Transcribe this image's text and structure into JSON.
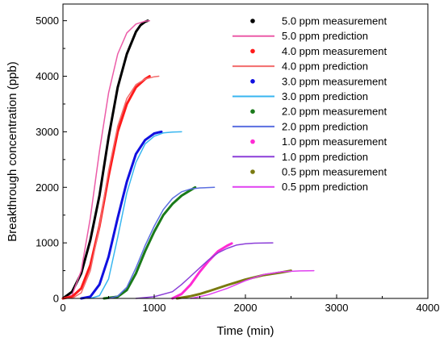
{
  "chart_data": {
    "type": "line",
    "xlabel": "Time (min)",
    "ylabel": "Breakthrough concentration (ppb)",
    "xlim": [
      0,
      4000
    ],
    "ylim": [
      0,
      5300
    ],
    "xticks": [
      0,
      1000,
      2000,
      3000,
      4000
    ],
    "yticks": [
      0,
      1000,
      2000,
      3000,
      4000,
      5000
    ],
    "grid": false,
    "legend_position": "top-right",
    "series": [
      {
        "name": "5.0 ppm measurement",
        "kind": "measurement",
        "color": "#000000",
        "x": [
          0,
          100,
          200,
          300,
          400,
          500,
          600,
          700,
          800,
          850,
          900,
          930
        ],
        "y": [
          0,
          120,
          450,
          1050,
          1850,
          2900,
          3800,
          4400,
          4800,
          4920,
          4980,
          5000
        ]
      },
      {
        "name": "5.0 ppm prediction",
        "kind": "prediction",
        "color": "#ec5ca8",
        "x": [
          0,
          100,
          200,
          300,
          400,
          500,
          600,
          700,
          800,
          900,
          950
        ],
        "y": [
          0,
          60,
          500,
          1450,
          2650,
          3700,
          4400,
          4780,
          4940,
          4990,
          5000
        ]
      },
      {
        "name": "4.0 ppm measurement",
        "kind": "measurement",
        "color": "#ff1a1a",
        "x": [
          0,
          100,
          200,
          300,
          400,
          500,
          600,
          700,
          800,
          900,
          950
        ],
        "y": [
          0,
          30,
          180,
          600,
          1300,
          2200,
          3000,
          3500,
          3800,
          3950,
          4000
        ]
      },
      {
        "name": "4.0 ppm prediction",
        "kind": "prediction",
        "color": "#f26b6b",
        "x": [
          100,
          200,
          300,
          400,
          500,
          600,
          700,
          800,
          900,
          1000,
          1050
        ],
        "y": [
          0,
          100,
          500,
          1300,
          2300,
          3100,
          3600,
          3850,
          3950,
          3990,
          4000
        ]
      },
      {
        "name": "3.0 ppm measurement",
        "kind": "measurement",
        "color": "#1010e0",
        "x": [
          200,
          300,
          400,
          500,
          600,
          700,
          800,
          900,
          1000,
          1050,
          1080
        ],
        "y": [
          0,
          30,
          250,
          750,
          1450,
          2100,
          2600,
          2850,
          2970,
          2990,
          3000
        ]
      },
      {
        "name": "3.0 ppm prediction",
        "kind": "prediction",
        "color": "#38b6f0",
        "x": [
          300,
          400,
          500,
          600,
          700,
          800,
          900,
          1000,
          1100,
          1200,
          1300
        ],
        "y": [
          0,
          50,
          350,
          1100,
          1900,
          2450,
          2780,
          2920,
          2980,
          2995,
          3000
        ]
      },
      {
        "name": "2.0 ppm measurement",
        "kind": "measurement",
        "color": "#1a7a1a",
        "x": [
          450,
          600,
          700,
          800,
          900,
          1000,
          1100,
          1200,
          1300,
          1400,
          1450
        ],
        "y": [
          0,
          30,
          150,
          450,
          850,
          1200,
          1500,
          1700,
          1850,
          1950,
          2000
        ]
      },
      {
        "name": "2.0 ppm prediction",
        "kind": "prediction",
        "color": "#5a6ee0",
        "x": [
          500,
          600,
          700,
          800,
          900,
          1000,
          1100,
          1200,
          1300,
          1400,
          1500,
          1660
        ],
        "y": [
          0,
          40,
          200,
          550,
          950,
          1300,
          1600,
          1800,
          1920,
          1970,
          1990,
          2000
        ]
      },
      {
        "name": "1.0 ppm measurement",
        "kind": "measurement",
        "color": "#ff2ad4",
        "x": [
          1200,
          1300,
          1400,
          1500,
          1600,
          1700,
          1800,
          1850
        ],
        "y": [
          0,
          80,
          250,
          480,
          680,
          850,
          950,
          990
        ]
      },
      {
        "name": "1.0 ppm prediction",
        "kind": "prediction",
        "color": "#8c3ed8",
        "x": [
          800,
          1000,
          1200,
          1300,
          1400,
          1500,
          1600,
          1700,
          1800,
          1900,
          2000,
          2100,
          2300
        ],
        "y": [
          0,
          30,
          120,
          250,
          400,
          550,
          700,
          820,
          900,
          960,
          985,
          995,
          1000
        ]
      },
      {
        "name": "0.5 ppm measurement",
        "kind": "measurement",
        "color": "#7a7a10",
        "x": [
          1250,
          1400,
          1500,
          1600,
          1800,
          2000,
          2200,
          2400,
          2500
        ],
        "y": [
          0,
          40,
          80,
          130,
          240,
          340,
          420,
          470,
          500
        ]
      },
      {
        "name": "0.5 ppm prediction",
        "kind": "prediction",
        "color": "#e040f0",
        "x": [
          1400,
          1500,
          1600,
          1800,
          2000,
          2200,
          2400,
          2600,
          2750
        ],
        "y": [
          0,
          30,
          70,
          180,
          320,
          430,
          480,
          495,
          500
        ]
      }
    ]
  }
}
